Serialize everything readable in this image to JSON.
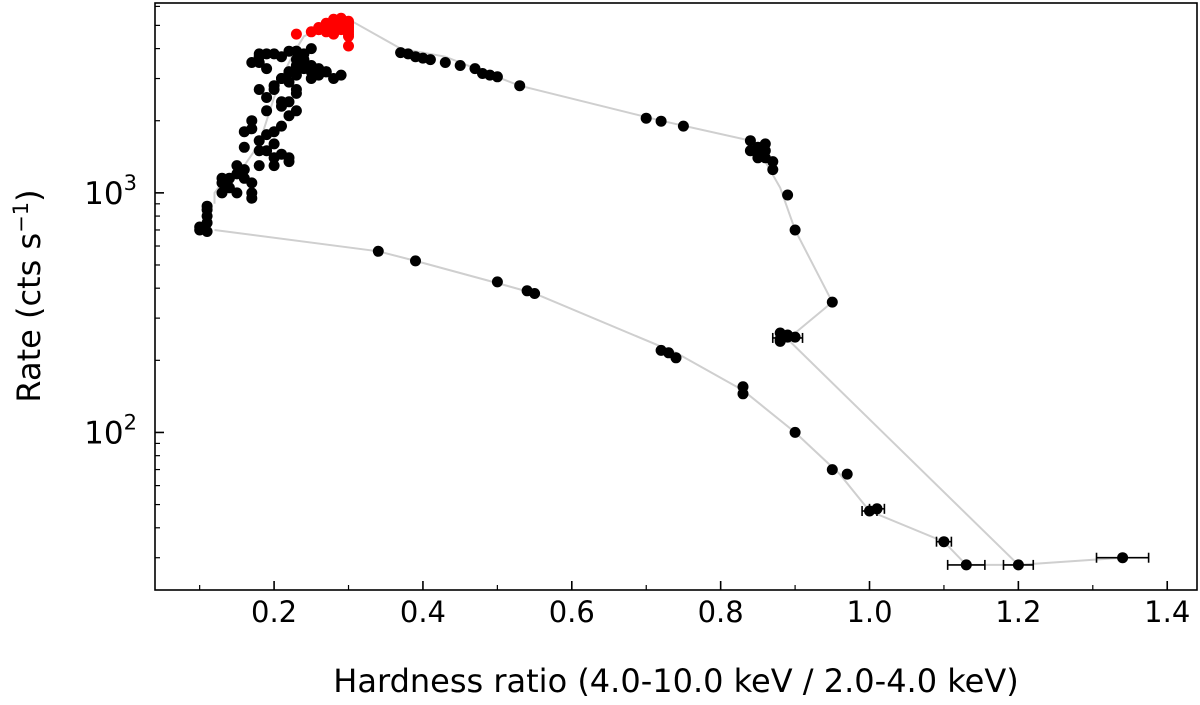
{
  "chart_data": {
    "type": "scatter",
    "title": "",
    "xlabel": "Hardness ratio (4.0-10.0 keV / 2.0-4.0 keV)",
    "ylabel": "Rate (cts s",
    "ylabel_sup": "−1",
    "ylabel_close": ")",
    "xlim": [
      0.04,
      1.44
    ],
    "ylim": [
      22,
      6200
    ],
    "yscale": "log",
    "grid": false,
    "x_ticks": [
      0.2,
      0.4,
      0.6,
      0.8,
      1.0,
      1.2,
      1.4
    ],
    "x_tick_labels": [
      "0.2",
      "0.4",
      "0.6",
      "0.8",
      "1.0",
      "1.2",
      "1.4"
    ],
    "y_ticks": [
      100,
      1000
    ],
    "y_tick_labels": [
      {
        "base": "10",
        "exp": "2"
      },
      {
        "base": "10",
        "exp": "3"
      }
    ],
    "colors": {
      "track": "#cfcfcf",
      "points": "#000000",
      "highlight": "#ff0000"
    },
    "track": {
      "x": [
        0.12,
        0.12,
        0.13,
        0.16,
        0.18,
        0.19,
        0.2,
        0.21,
        0.22,
        0.23,
        0.24,
        0.26,
        0.28,
        0.3,
        0.37,
        0.43,
        0.53,
        0.72,
        0.84,
        0.86,
        0.88,
        0.9,
        0.95,
        0.9,
        0.88,
        0.89,
        1.2,
        1.34,
        1.2,
        1.13,
        1.1,
        1.0,
        0.96,
        0.9,
        0.83,
        0.74,
        0.55,
        0.5,
        0.39,
        0.34,
        0.12
      ],
      "y": [
        900,
        1000,
        1100,
        1300,
        1600,
        2000,
        2500,
        3000,
        3500,
        4000,
        4500,
        4800,
        5100,
        5300,
        4000,
        3700,
        2800,
        2000,
        1650,
        1350,
        1050,
        700,
        350,
        260,
        250,
        245,
        28,
        30,
        28,
        28,
        35,
        47,
        67,
        100,
        150,
        215,
        380,
        420,
        520,
        570,
        700
      ]
    },
    "series": [
      {
        "color": "#000000",
        "x": [
          0.1,
          0.1,
          0.11,
          0.11,
          0.11,
          0.11,
          0.11,
          0.13,
          0.13,
          0.13,
          0.14,
          0.14,
          0.15,
          0.15,
          0.15,
          0.16,
          0.16,
          0.17,
          0.17,
          0.17,
          0.18,
          0.18,
          0.18,
          0.19,
          0.19,
          0.2,
          0.2,
          0.2,
          0.21,
          0.21,
          0.21,
          0.22,
          0.22,
          0.23,
          0.23,
          0.16,
          0.17,
          0.16,
          0.2,
          0.22,
          0.22,
          0.17,
          0.2,
          0.21,
          0.19,
          0.18,
          0.22,
          0.23,
          0.24,
          0.25,
          0.17,
          0.18,
          0.18,
          0.19,
          0.2,
          0.21,
          0.22,
          0.23,
          0.19,
          0.2,
          0.21,
          0.22,
          0.23,
          0.24,
          0.25,
          0.26,
          0.27,
          0.28,
          0.29,
          0.18,
          0.19,
          0.21,
          0.23,
          0.25,
          0.26,
          0.27,
          0.23,
          0.24,
          0.22,
          0.25,
          0.24,
          0.23,
          0.37,
          0.38,
          0.39,
          0.4,
          0.41,
          0.43,
          0.45,
          0.47,
          0.48,
          0.49,
          0.5,
          0.53,
          0.7,
          0.72,
          0.75,
          0.84,
          0.84,
          0.85,
          0.85,
          0.85,
          0.86,
          0.86,
          0.86,
          0.87,
          0.87,
          0.89,
          0.9,
          0.95,
          0.88,
          0.88,
          0.89,
          0.89,
          0.9,
          0.88,
          0.34,
          0.39,
          0.5,
          0.54,
          0.55,
          0.72,
          0.73,
          0.74,
          0.83,
          0.83,
          0.9,
          0.95,
          0.97,
          1.0,
          1.01,
          1.1,
          1.13,
          1.2,
          1.34
        ],
        "y": [
          720,
          700,
          690,
          750,
          800,
          850,
          880,
          1000,
          1100,
          1150,
          1050,
          1150,
          1000,
          1200,
          1300,
          1250,
          1150,
          1000,
          950,
          1100,
          1300,
          1500,
          1650,
          1750,
          1500,
          1400,
          1600,
          1800,
          1450,
          1900,
          2300,
          2100,
          2400,
          2200,
          2600,
          1800,
          1850,
          1550,
          1300,
          1350,
          1400,
          2000,
          2800,
          3000,
          3300,
          3500,
          3200,
          3600,
          3800,
          4000,
          3500,
          3700,
          3800,
          3800,
          3800,
          3700,
          3900,
          3900,
          2500,
          2700,
          3000,
          3200,
          3400,
          3500,
          3200,
          3100,
          3200,
          3000,
          3100,
          2700,
          2200,
          2400,
          2700,
          3000,
          3300,
          3200,
          3100,
          3300,
          2900,
          3400,
          3600,
          3900,
          3850,
          3800,
          3700,
          3650,
          3600,
          3500,
          3400,
          3300,
          3150,
          3100,
          3050,
          2800,
          2050,
          1990,
          1900,
          1650,
          1500,
          1400,
          1450,
          1550,
          1600,
          1500,
          1400,
          1350,
          1250,
          980,
          700,
          350,
          260,
          245,
          255,
          250,
          250,
          240,
          570,
          520,
          425,
          390,
          380,
          220,
          215,
          205,
          155,
          145,
          100,
          70,
          67,
          47,
          48,
          35,
          28,
          28,
          30
        ]
      },
      {
        "color": "#ff0000",
        "x": [
          0.23,
          0.25,
          0.26,
          0.26,
          0.27,
          0.27,
          0.28,
          0.28,
          0.28,
          0.28,
          0.29,
          0.29,
          0.29,
          0.29,
          0.3,
          0.3,
          0.3,
          0.3,
          0.3,
          0.3,
          0.3,
          0.3,
          0.3,
          0.28,
          0.27,
          0.26,
          0.29
        ],
        "y": [
          4600,
          4700,
          4800,
          4900,
          5000,
          5100,
          5150,
          5200,
          5300,
          4700,
          4800,
          5000,
          5100,
          5300,
          5200,
          5100,
          5000,
          4900,
          4800,
          4700,
          4600,
          4500,
          4100,
          4600,
          4700,
          4800,
          5350
        ]
      }
    ],
    "x_error_bars": [
      {
        "x": 0.89,
        "y": 248,
        "xerr": 0.02
      },
      {
        "x": 1.0,
        "y": 47,
        "xerr": 0.01
      },
      {
        "x": 1.01,
        "y": 48,
        "xerr": 0.01
      },
      {
        "x": 1.1,
        "y": 35,
        "xerr": 0.01
      },
      {
        "x": 1.13,
        "y": 28,
        "xerr": 0.025
      },
      {
        "x": 1.2,
        "y": 28,
        "xerr": 0.02
      },
      {
        "x": 1.34,
        "y": 30,
        "xerr": 0.035
      }
    ]
  }
}
